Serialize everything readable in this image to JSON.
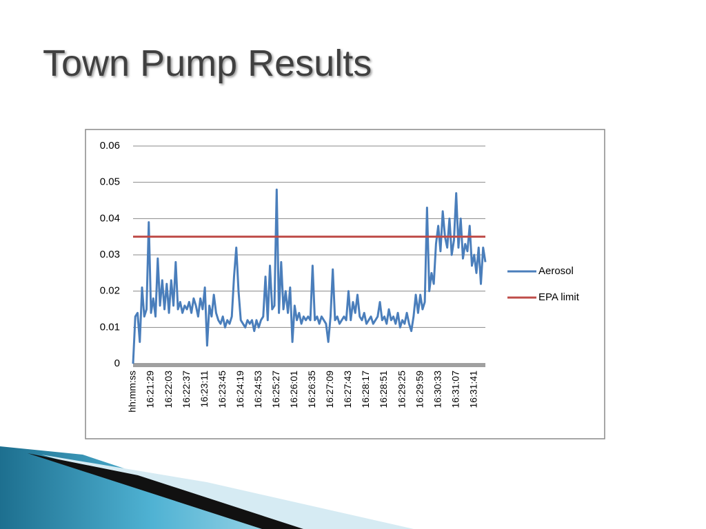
{
  "title": "Town Pump Results",
  "chart_data": {
    "type": "line",
    "categories": [
      "hh:mm:ss",
      null,
      null,
      null,
      null,
      null,
      null,
      null,
      "16:21:29",
      null,
      null,
      null,
      null,
      null,
      null,
      null,
      "16:22:03",
      null,
      null,
      null,
      null,
      null,
      null,
      null,
      "16:22:37",
      null,
      null,
      null,
      null,
      null,
      null,
      null,
      "16:23:11",
      null,
      null,
      null,
      null,
      null,
      null,
      null,
      "16:23:45",
      null,
      null,
      null,
      null,
      null,
      null,
      null,
      "16:24:19",
      null,
      null,
      null,
      null,
      null,
      null,
      null,
      "16:24:53",
      null,
      null,
      null,
      null,
      null,
      null,
      null,
      "16:25:27",
      null,
      null,
      null,
      null,
      null,
      null,
      null,
      "16:26:01",
      null,
      null,
      null,
      null,
      null,
      null,
      null,
      "16:26:35",
      null,
      null,
      null,
      null,
      null,
      null,
      null,
      "16:27:09",
      null,
      null,
      null,
      null,
      null,
      null,
      null,
      "16:27:43",
      null,
      null,
      null,
      null,
      null,
      null,
      null,
      "16:28:17",
      null,
      null,
      null,
      null,
      null,
      null,
      null,
      "16:28:51",
      null,
      null,
      null,
      null,
      null,
      null,
      null,
      "16:29:25",
      null,
      null,
      null,
      null,
      null,
      null,
      null,
      "16:29:59",
      null,
      null,
      null,
      null,
      null,
      null,
      null,
      "16:30:33",
      null,
      null,
      null,
      null,
      null,
      null,
      null,
      "16:31:07",
      null,
      null,
      null,
      null,
      null,
      null,
      null,
      "16:31:41",
      null,
      null,
      null,
      null,
      null
    ],
    "series": [
      {
        "name": "Aerosol",
        "color": "#4a7ebb",
        "values": [
          0,
          0.013,
          0.014,
          0.006,
          0.021,
          0.013,
          0.015,
          0.039,
          0.014,
          0.018,
          0.013,
          0.029,
          0.016,
          0.023,
          0.015,
          0.022,
          0.014,
          0.023,
          0.016,
          0.028,
          0.015,
          0.017,
          0.014,
          0.016,
          0.015,
          0.017,
          0.014,
          0.018,
          0.016,
          0.013,
          0.018,
          0.015,
          0.021,
          0.005,
          0.016,
          0.013,
          0.019,
          0.014,
          0.012,
          0.011,
          0.013,
          0.01,
          0.012,
          0.011,
          0.013,
          0.024,
          0.032,
          0.02,
          0.012,
          0.011,
          0.01,
          0.012,
          0.011,
          0.012,
          0.009,
          0.012,
          0.01,
          0.012,
          0.013,
          0.024,
          0.012,
          0.027,
          0.015,
          0.016,
          0.048,
          0.014,
          0.028,
          0.015,
          0.02,
          0.014,
          0.021,
          0.006,
          0.016,
          0.012,
          0.014,
          0.011,
          0.013,
          0.012,
          0.013,
          0.012,
          0.027,
          0.012,
          0.013,
          0.011,
          0.013,
          0.012,
          0.011,
          0.006,
          0.013,
          0.026,
          0.012,
          0.013,
          0.011,
          0.012,
          0.013,
          0.012,
          0.02,
          0.012,
          0.017,
          0.014,
          0.019,
          0.013,
          0.012,
          0.014,
          0.011,
          0.012,
          0.013,
          0.011,
          0.012,
          0.013,
          0.017,
          0.012,
          0.013,
          0.011,
          0.015,
          0.012,
          0.013,
          0.011,
          0.014,
          0.01,
          0.012,
          0.011,
          0.014,
          0.011,
          0.009,
          0.013,
          0.019,
          0.014,
          0.019,
          0.015,
          0.017,
          0.043,
          0.02,
          0.025,
          0.022,
          0.033,
          0.038,
          0.031,
          0.042,
          0.035,
          0.032,
          0.04,
          0.03,
          0.034,
          0.047,
          0.032,
          0.04,
          0.029,
          0.033,
          0.031,
          0.038,
          0.027,
          0.03,
          0.025,
          0.032,
          0.022,
          0.032,
          0.028
        ]
      }
    ],
    "reference_line": {
      "name": "EPA limit",
      "color": "#be4b48",
      "value": 0.035
    },
    "ylim": [
      0,
      0.06
    ],
    "yticks": [
      0,
      0.01,
      0.02,
      0.03,
      0.04,
      0.05,
      0.06
    ],
    "grid": true,
    "legend": "right"
  }
}
